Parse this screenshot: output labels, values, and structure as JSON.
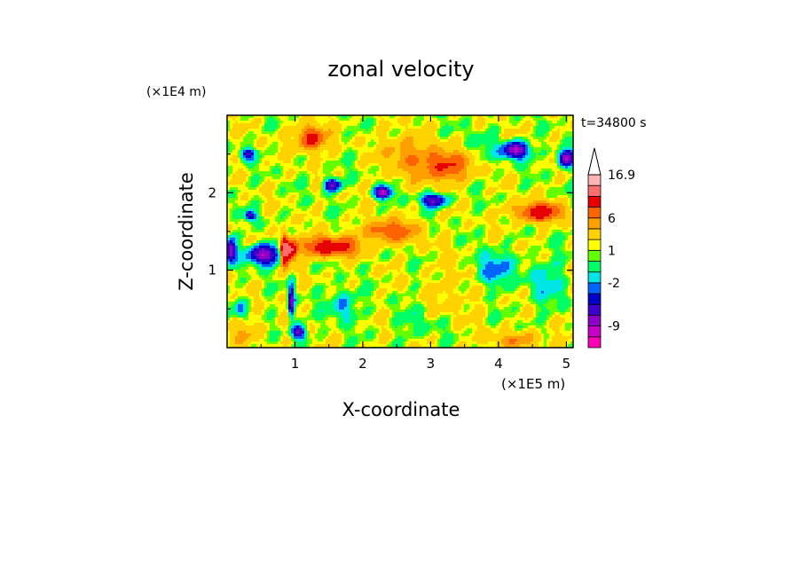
{
  "chart_data": {
    "type": "heatmap",
    "title": "zonal velocity",
    "xlabel": "X-coordinate",
    "ylabel": "Z-coordinate",
    "x_unit": "(×1E5 m)",
    "y_unit": "(×1E4 m)",
    "time_label": "t=34800 s",
    "xlim": [
      0,
      5.1
    ],
    "ylim": [
      0,
      3.0
    ],
    "x_ticks": [
      {
        "value": 1,
        "label": "1"
      },
      {
        "value": 2,
        "label": "2"
      },
      {
        "value": 3,
        "label": "3"
      },
      {
        "value": 4,
        "label": "4"
      },
      {
        "value": 5,
        "label": "5"
      }
    ],
    "y_ticks": [
      {
        "value": 1,
        "label": "1"
      },
      {
        "value": 2,
        "label": "2"
      }
    ],
    "colorbar": {
      "levels": [
        {
          "color": "#ff00b4"
        },
        {
          "color": "#c800c8"
        },
        {
          "color": "#8c00c8"
        },
        {
          "color": "#3c00c8"
        },
        {
          "color": "#0000c8"
        },
        {
          "color": "#0064ff"
        },
        {
          "color": "#00e6e6"
        },
        {
          "color": "#00ff64"
        },
        {
          "color": "#64ff00"
        },
        {
          "color": "#ffff00"
        },
        {
          "color": "#ffd200"
        },
        {
          "color": "#ffa000"
        },
        {
          "color": "#ff6400"
        },
        {
          "color": "#e60000"
        },
        {
          "color": "#ff6e6e"
        },
        {
          "color": "#ffb4b4"
        }
      ],
      "tick_labels": [
        {
          "level_index": 2,
          "label": "-9"
        },
        {
          "level_index": 6,
          "label": "-2"
        },
        {
          "level_index": 9,
          "label": "1"
        },
        {
          "level_index": 12,
          "label": "6"
        },
        {
          "level_index": 16,
          "label": "16.9"
        }
      ],
      "extend": "max"
    },
    "features": [
      {
        "x": 0.05,
        "z": 1.25,
        "sx": 0.08,
        "sz": 0.14,
        "v": -9
      },
      {
        "x": 0.55,
        "z": 1.2,
        "sx": 0.22,
        "sz": 0.12,
        "v": -10
      },
      {
        "x": 0.3,
        "z": 2.5,
        "sx": 0.1,
        "sz": 0.07,
        "v": -6
      },
      {
        "x": 0.35,
        "z": 1.7,
        "sx": 0.08,
        "sz": 0.06,
        "v": -7
      },
      {
        "x": 0.85,
        "z": 1.25,
        "sx": 0.06,
        "sz": 0.2,
        "v": 12
      },
      {
        "x": 0.95,
        "z": 1.25,
        "sx": 0.07,
        "sz": 0.12,
        "v": 9
      },
      {
        "x": 0.95,
        "z": 0.6,
        "sx": 0.04,
        "sz": 0.2,
        "v": -9
      },
      {
        "x": 1.05,
        "z": 0.2,
        "sx": 0.1,
        "sz": 0.08,
        "v": -8
      },
      {
        "x": 1.5,
        "z": 1.3,
        "sx": 0.4,
        "sz": 0.12,
        "v": 8
      },
      {
        "x": 2.4,
        "z": 1.5,
        "sx": 0.4,
        "sz": 0.14,
        "v": 5
      },
      {
        "x": 1.7,
        "z": 0.55,
        "sx": 0.2,
        "sz": 0.18,
        "v": -3
      },
      {
        "x": 1.25,
        "z": 2.7,
        "sx": 0.2,
        "sz": 0.15,
        "v": 7
      },
      {
        "x": 1.55,
        "z": 2.1,
        "sx": 0.12,
        "sz": 0.08,
        "v": -8
      },
      {
        "x": 2.3,
        "z": 2.0,
        "sx": 0.12,
        "sz": 0.07,
        "v": -10
      },
      {
        "x": 3.05,
        "z": 1.9,
        "sx": 0.18,
        "sz": 0.08,
        "v": -8
      },
      {
        "x": 3.2,
        "z": 2.35,
        "sx": 0.35,
        "sz": 0.2,
        "v": 6
      },
      {
        "x": 2.6,
        "z": 2.5,
        "sx": 0.3,
        "sz": 0.25,
        "v": 3
      },
      {
        "x": 3.7,
        "z": 2.6,
        "sx": 0.3,
        "sz": 0.2,
        "v": -1
      },
      {
        "x": 4.25,
        "z": 2.55,
        "sx": 0.18,
        "sz": 0.1,
        "v": -10
      },
      {
        "x": 5.0,
        "z": 2.45,
        "sx": 0.12,
        "sz": 0.1,
        "v": -10
      },
      {
        "x": 4.6,
        "z": 1.75,
        "sx": 0.35,
        "sz": 0.12,
        "v": 7
      },
      {
        "x": 3.9,
        "z": 1.0,
        "sx": 0.25,
        "sz": 0.2,
        "v": -4
      },
      {
        "x": 4.7,
        "z": 0.85,
        "sx": 0.3,
        "sz": 0.3,
        "v": -2
      },
      {
        "x": 3.4,
        "z": 0.8,
        "sx": 0.4,
        "sz": 0.4,
        "v": 1
      },
      {
        "x": 2.8,
        "z": 0.3,
        "sx": 0.3,
        "sz": 0.2,
        "v": -1
      },
      {
        "x": 4.3,
        "z": 0.1,
        "sx": 0.4,
        "sz": 0.1,
        "v": 3
      },
      {
        "x": 0.3,
        "z": 0.2,
        "sx": 0.25,
        "sz": 0.15,
        "v": 2
      },
      {
        "x": 0.2,
        "z": 0.5,
        "sx": 0.1,
        "sz": 0.12,
        "v": -3
      }
    ]
  }
}
